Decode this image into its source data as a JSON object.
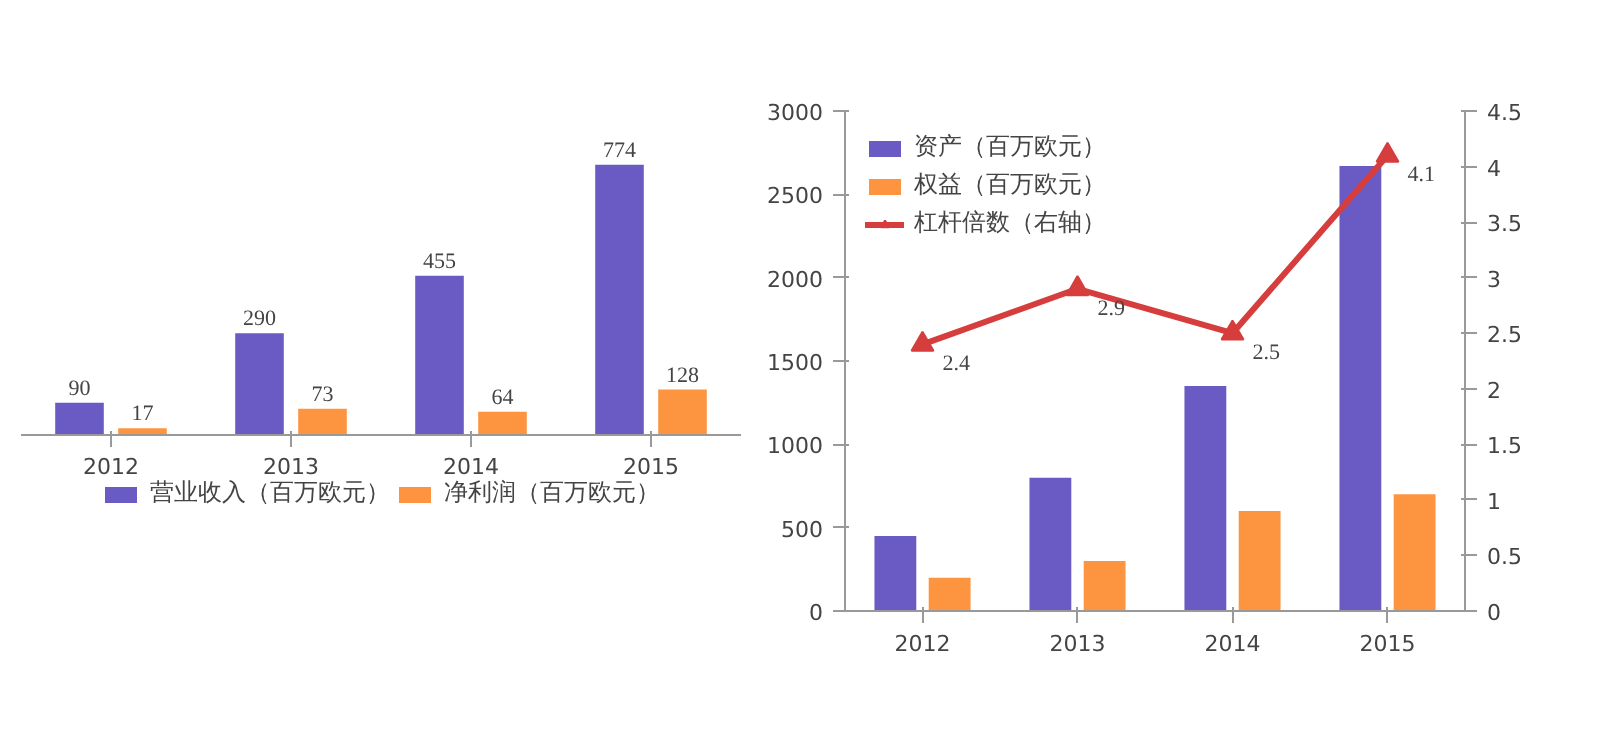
{
  "chart_data": [
    {
      "type": "bar",
      "categories": [
        "2012",
        "2013",
        "2014",
        "2015"
      ],
      "series": [
        {
          "name": "营业收入（百万欧元）",
          "color": "#6a5bc4",
          "values": [
            90,
            290,
            455,
            774
          ]
        },
        {
          "name": "净利润（百万欧元）",
          "color": "#fd9440",
          "values": [
            17,
            73,
            64,
            128
          ]
        }
      ],
      "data_labels": true,
      "tick_labels": "x",
      "legend": "bottom",
      "grid": false
    },
    {
      "type": "bar",
      "categories": [
        "2012",
        "2013",
        "2014",
        "2015"
      ],
      "series": [
        {
          "name": "资产（百万欧元）",
          "color": "#6a5bc4",
          "values": [
            450,
            800,
            1350,
            2670
          ]
        },
        {
          "name": "权益（百万欧元）",
          "color": "#fd9440",
          "values": [
            200,
            300,
            600,
            700
          ]
        },
        {
          "name": "杠杆倍数（右轴）",
          "type": "line",
          "axis": "y2",
          "color": "#d63d3d",
          "marker": "triangle",
          "values": [
            2.4,
            2.9,
            2.5,
            4.1
          ],
          "value_labels": [
            "2.4",
            "2.9",
            "2.5",
            "4.1"
          ]
        }
      ],
      "ylim": [
        0,
        3000
      ],
      "yticks": [
        0,
        500,
        1000,
        1500,
        2000,
        2500,
        3000
      ],
      "y2lim": [
        0,
        4.5
      ],
      "y2ticks": [
        0,
        0.5,
        1,
        1.5,
        2,
        2.5,
        3,
        3.5,
        4,
        4.5
      ],
      "legend": "top left",
      "grid": false
    }
  ]
}
